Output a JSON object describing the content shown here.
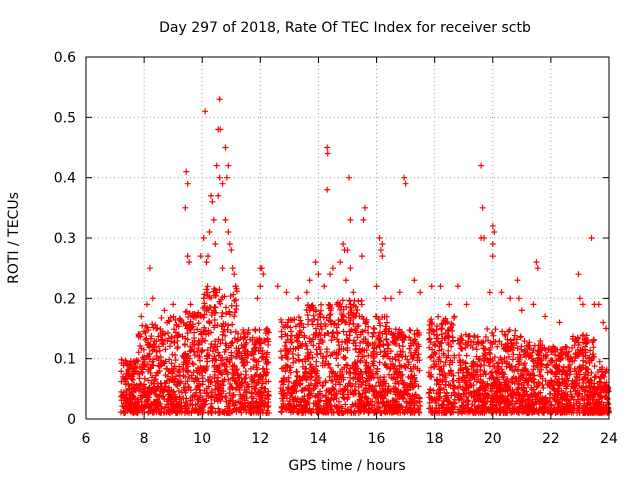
{
  "chart_data": {
    "type": "scatter",
    "title": "Day 297 of 2018, Rate Of TEC Index for receiver sctb",
    "xlabel": "GPS time / hours",
    "ylabel": "ROTI / TECUs",
    "xlim": [
      6,
      24
    ],
    "ylim": [
      0,
      0.6
    ],
    "xticks": [
      6,
      8,
      10,
      12,
      14,
      16,
      18,
      20,
      22,
      24
    ],
    "yticks": [
      0,
      0.1,
      0.2,
      0.3,
      0.4,
      0.5,
      0.6
    ],
    "xtick_labels": [
      "6",
      "8",
      "10",
      "12",
      "14",
      "16",
      "18",
      "20",
      "22",
      "24"
    ],
    "ytick_labels": [
      "0",
      "0.1",
      "0.2",
      "0.3",
      "0.4",
      "0.5",
      "0.6"
    ],
    "grid": true,
    "marker": "plus",
    "series_color": "#ff0000",
    "series": [
      {
        "name": "ROTI",
        "points": [
          [
            9.45,
            0.41
          ],
          [
            9.5,
            0.39
          ],
          [
            9.42,
            0.35
          ],
          [
            9.5,
            0.27
          ],
          [
            9.55,
            0.26
          ],
          [
            9.6,
            0.19
          ],
          [
            10.1,
            0.51
          ],
          [
            10.6,
            0.53
          ],
          [
            10.55,
            0.48
          ],
          [
            10.62,
            0.48
          ],
          [
            10.5,
            0.42
          ],
          [
            10.6,
            0.4
          ],
          [
            10.8,
            0.45
          ],
          [
            10.9,
            0.42
          ],
          [
            10.85,
            0.4
          ],
          [
            10.7,
            0.39
          ],
          [
            10.55,
            0.37
          ],
          [
            10.3,
            0.37
          ],
          [
            10.35,
            0.36
          ],
          [
            10.4,
            0.33
          ],
          [
            10.25,
            0.31
          ],
          [
            10.8,
            0.33
          ],
          [
            10.9,
            0.31
          ],
          [
            10.95,
            0.29
          ],
          [
            11.0,
            0.28
          ],
          [
            10.05,
            0.3
          ],
          [
            9.95,
            0.27
          ],
          [
            10.15,
            0.26
          ],
          [
            10.2,
            0.27
          ],
          [
            11.1,
            0.24
          ],
          [
            11.15,
            0.22
          ],
          [
            11.05,
            0.25
          ],
          [
            10.45,
            0.29
          ],
          [
            10.7,
            0.25
          ],
          [
            8.2,
            0.25
          ],
          [
            7.9,
            0.17
          ],
          [
            8.1,
            0.19
          ],
          [
            8.3,
            0.2
          ],
          [
            8.7,
            0.18
          ],
          [
            9.0,
            0.19
          ],
          [
            12.0,
            0.25
          ],
          [
            12.05,
            0.25
          ],
          [
            12.1,
            0.24
          ],
          [
            12.0,
            0.22
          ],
          [
            11.9,
            0.2
          ],
          [
            12.6,
            0.22
          ],
          [
            12.9,
            0.21
          ],
          [
            13.3,
            0.2
          ],
          [
            13.6,
            0.21
          ],
          [
            13.9,
            0.26
          ],
          [
            14.0,
            0.24
          ],
          [
            13.7,
            0.23
          ],
          [
            14.3,
            0.45
          ],
          [
            14.32,
            0.44
          ],
          [
            14.3,
            0.38
          ],
          [
            14.4,
            0.24
          ],
          [
            14.5,
            0.25
          ],
          [
            14.2,
            0.22
          ],
          [
            14.85,
            0.29
          ],
          [
            14.9,
            0.28
          ],
          [
            15.0,
            0.28
          ],
          [
            14.75,
            0.26
          ],
          [
            15.1,
            0.25
          ],
          [
            14.95,
            0.23
          ],
          [
            15.05,
            0.4
          ],
          [
            15.1,
            0.33
          ],
          [
            15.6,
            0.35
          ],
          [
            15.55,
            0.33
          ],
          [
            15.5,
            0.27
          ],
          [
            15.2,
            0.21
          ],
          [
            16.1,
            0.3
          ],
          [
            16.2,
            0.29
          ],
          [
            16.15,
            0.28
          ],
          [
            16.2,
            0.27
          ],
          [
            16.0,
            0.22
          ],
          [
            16.3,
            0.2
          ],
          [
            16.5,
            0.2
          ],
          [
            16.8,
            0.21
          ],
          [
            16.95,
            0.4
          ],
          [
            17.0,
            0.39
          ],
          [
            17.3,
            0.23
          ],
          [
            17.5,
            0.21
          ],
          [
            17.9,
            0.22
          ],
          [
            18.2,
            0.22
          ],
          [
            18.5,
            0.19
          ],
          [
            18.8,
            0.22
          ],
          [
            19.1,
            0.19
          ],
          [
            19.6,
            0.42
          ],
          [
            19.65,
            0.35
          ],
          [
            19.7,
            0.3
          ],
          [
            19.6,
            0.3
          ],
          [
            20.0,
            0.32
          ],
          [
            20.05,
            0.31
          ],
          [
            20.0,
            0.29
          ],
          [
            20.0,
            0.27
          ],
          [
            19.9,
            0.21
          ],
          [
            20.3,
            0.21
          ],
          [
            20.6,
            0.2
          ],
          [
            20.85,
            0.23
          ],
          [
            20.9,
            0.2
          ],
          [
            21.0,
            0.18
          ],
          [
            21.5,
            0.26
          ],
          [
            21.55,
            0.25
          ],
          [
            21.4,
            0.19
          ],
          [
            21.8,
            0.17
          ],
          [
            22.3,
            0.16
          ],
          [
            22.95,
            0.24
          ],
          [
            23.0,
            0.2
          ],
          [
            23.1,
            0.19
          ],
          [
            23.4,
            0.3
          ],
          [
            23.5,
            0.19
          ],
          [
            23.65,
            0.19
          ],
          [
            23.9,
            0.15
          ],
          [
            23.8,
            0.16
          ]
        ]
      }
    ],
    "dense_bands": [
      {
        "x": [
          7.2,
          7.8
        ],
        "max": 0.1
      },
      {
        "x": [
          7.8,
          8.5
        ],
        "max": 0.16
      },
      {
        "x": [
          8.5,
          9.3
        ],
        "max": 0.17
      },
      {
        "x": [
          9.3,
          10.0
        ],
        "max": 0.18
      },
      {
        "x": [
          10.0,
          11.2
        ],
        "max": 0.22
      },
      {
        "x": [
          11.2,
          12.3
        ],
        "max": 0.15
      },
      {
        "x": [
          12.7,
          13.5
        ],
        "max": 0.17
      },
      {
        "x": [
          13.5,
          14.5
        ],
        "max": 0.19
      },
      {
        "x": [
          14.5,
          15.5
        ],
        "max": 0.2
      },
      {
        "x": [
          15.5,
          16.5
        ],
        "max": 0.17
      },
      {
        "x": [
          16.5,
          17.5
        ],
        "max": 0.15
      },
      {
        "x": [
          17.8,
          18.7
        ],
        "max": 0.17
      },
      {
        "x": [
          18.8,
          19.8
        ],
        "max": 0.14
      },
      {
        "x": [
          19.8,
          21.0
        ],
        "max": 0.15
      },
      {
        "x": [
          21.0,
          21.8
        ],
        "max": 0.13
      },
      {
        "x": [
          21.8,
          22.7
        ],
        "max": 0.12
      },
      {
        "x": [
          22.7,
          23.5
        ],
        "max": 0.14
      },
      {
        "x": [
          23.5,
          24.0
        ],
        "max": 0.1
      }
    ]
  }
}
